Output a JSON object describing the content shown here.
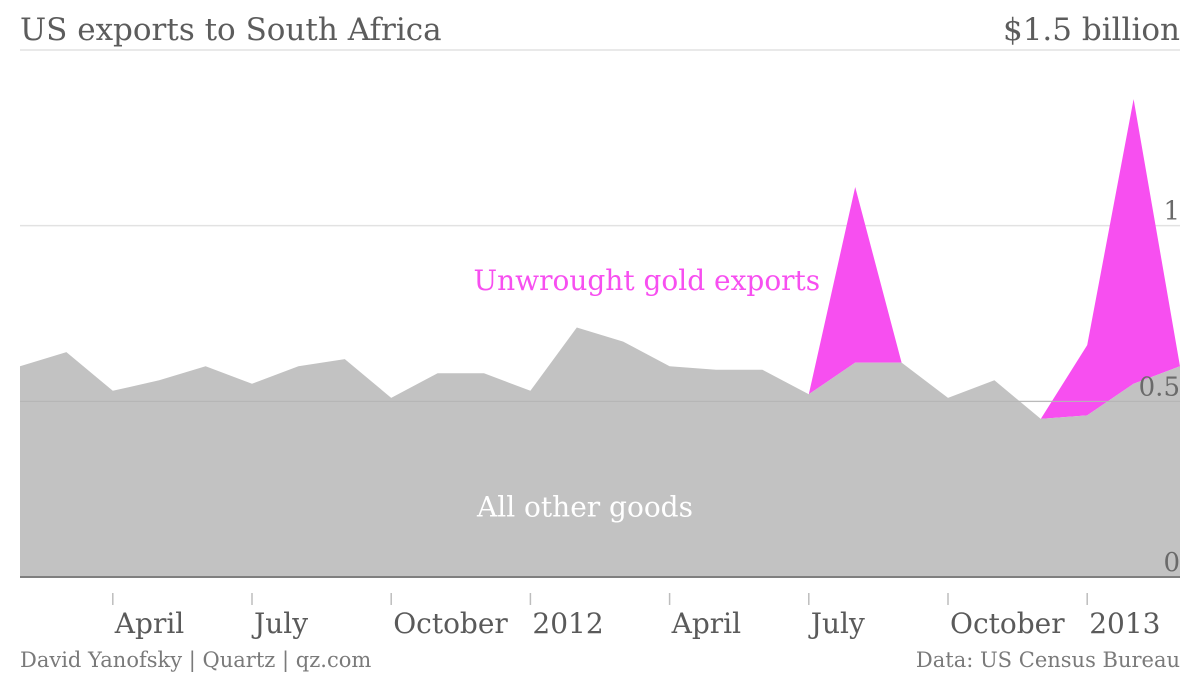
{
  "header": {
    "title": "US exports to South Africa",
    "unit_label": "$1.5 billion"
  },
  "footer": {
    "credit": "David Yanofsky | Quartz | qz.com",
    "source": "Data: US Census Bureau"
  },
  "chart_data": {
    "type": "area",
    "stacked": true,
    "x": [
      "2011-02",
      "2011-03",
      "2011-04",
      "2011-05",
      "2011-06",
      "2011-07",
      "2011-08",
      "2011-09",
      "2011-10",
      "2011-11",
      "2011-12",
      "2012-01",
      "2012-02",
      "2012-03",
      "2012-04",
      "2012-05",
      "2012-06",
      "2012-07",
      "2012-08",
      "2012-09",
      "2012-10",
      "2012-11",
      "2012-12",
      "2013-01",
      "2013-02",
      "2013-03"
    ],
    "series": [
      {
        "name": "All other goods",
        "color": "#c2c2c2",
        "values": [
          0.6,
          0.64,
          0.53,
          0.56,
          0.6,
          0.55,
          0.6,
          0.62,
          0.51,
          0.58,
          0.58,
          0.53,
          0.71,
          0.67,
          0.6,
          0.59,
          0.59,
          0.52,
          0.61,
          0.61,
          0.51,
          0.56,
          0.45,
          0.46,
          0.55,
          0.6
        ]
      },
      {
        "name": "Unwrought gold exports",
        "color": "#f74ff0",
        "values": [
          0,
          0,
          0,
          0,
          0,
          0,
          0,
          0,
          0,
          0,
          0,
          0,
          0,
          0,
          0,
          0,
          0,
          0,
          0.5,
          0,
          0,
          0,
          0,
          0.2,
          0.81,
          0.0
        ]
      }
    ],
    "y_ticks": [
      "0",
      "0.5",
      "1"
    ],
    "ylim": [
      0,
      1.5
    ],
    "x_tick_labels": [
      {
        "x": "2011-04",
        "label": "April"
      },
      {
        "x": "2011-07",
        "label": "July"
      },
      {
        "x": "2011-10",
        "label": "October"
      },
      {
        "x": "2012-01",
        "label": "2012"
      },
      {
        "x": "2012-04",
        "label": "April"
      },
      {
        "x": "2012-07",
        "label": "July"
      },
      {
        "x": "2012-10",
        "label": "October"
      },
      {
        "x": "2013-01",
        "label": "2013"
      }
    ],
    "annotations": {
      "gold": "Unwrought gold exports",
      "other": "All other goods"
    },
    "grid": true,
    "axis_color": "#7f7f7f",
    "grid_color": "#e2e2e2"
  }
}
